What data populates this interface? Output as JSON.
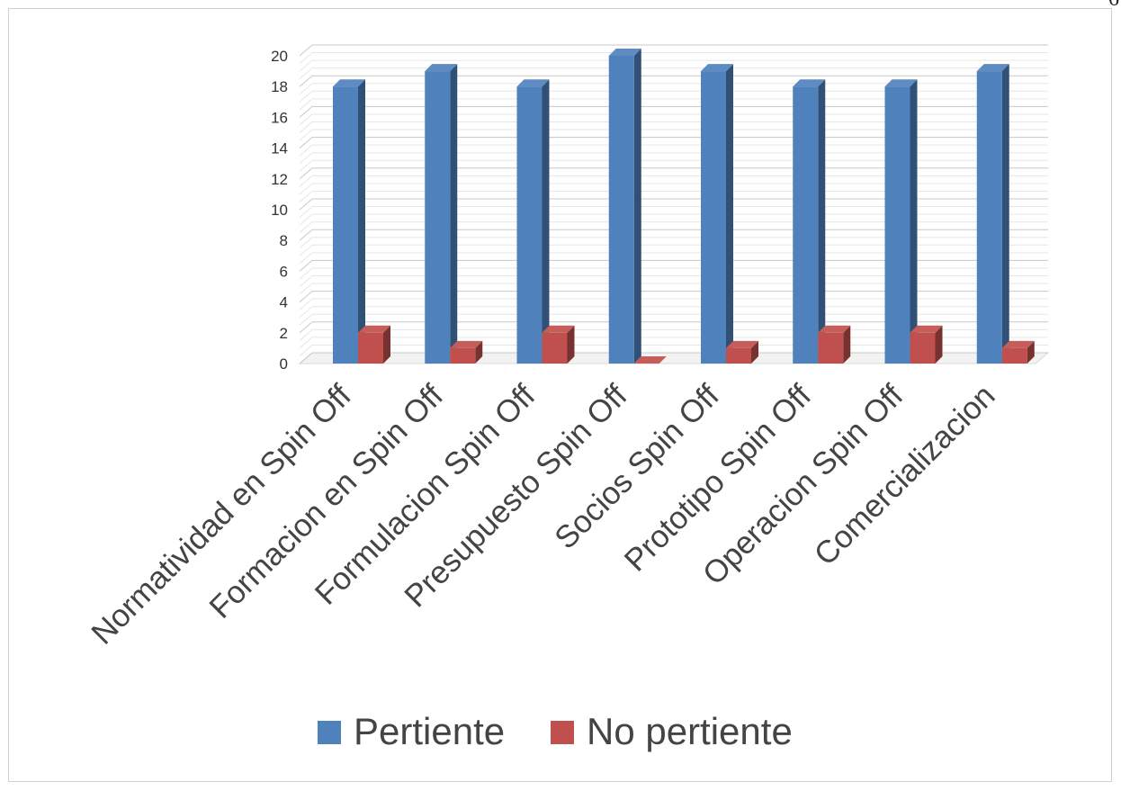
{
  "page": {
    "number": "6"
  },
  "chart_data": {
    "type": "bar",
    "categories": [
      "Normatividad en Spin Off",
      "Formacion en Spin Off",
      "Formulacion Spin Off",
      "Presupuesto Spin Off",
      "Socios Spin Off",
      "Prototipo Spin Off",
      "Operacion Spin Off",
      "Comercializacion"
    ],
    "series": [
      {
        "name": "Pertiente",
        "values": [
          18,
          19,
          18,
          20,
          19,
          18,
          18,
          19
        ],
        "color": "#4f81bd"
      },
      {
        "name": "No pertiente",
        "values": [
          2,
          1,
          2,
          0,
          1,
          2,
          2,
          1
        ],
        "color": "#c0504d"
      }
    ],
    "ylim": [
      0,
      20
    ],
    "yticks": [
      0,
      2,
      4,
      6,
      8,
      10,
      12,
      14,
      16,
      18,
      20
    ],
    "ytick_labels": [
      "0",
      "2",
      "4",
      "6",
      "8",
      "10",
      "12",
      "14",
      "16",
      "18",
      "20"
    ],
    "grid": true,
    "style": "3d-column",
    "legend": {
      "position": "bottom"
    }
  }
}
